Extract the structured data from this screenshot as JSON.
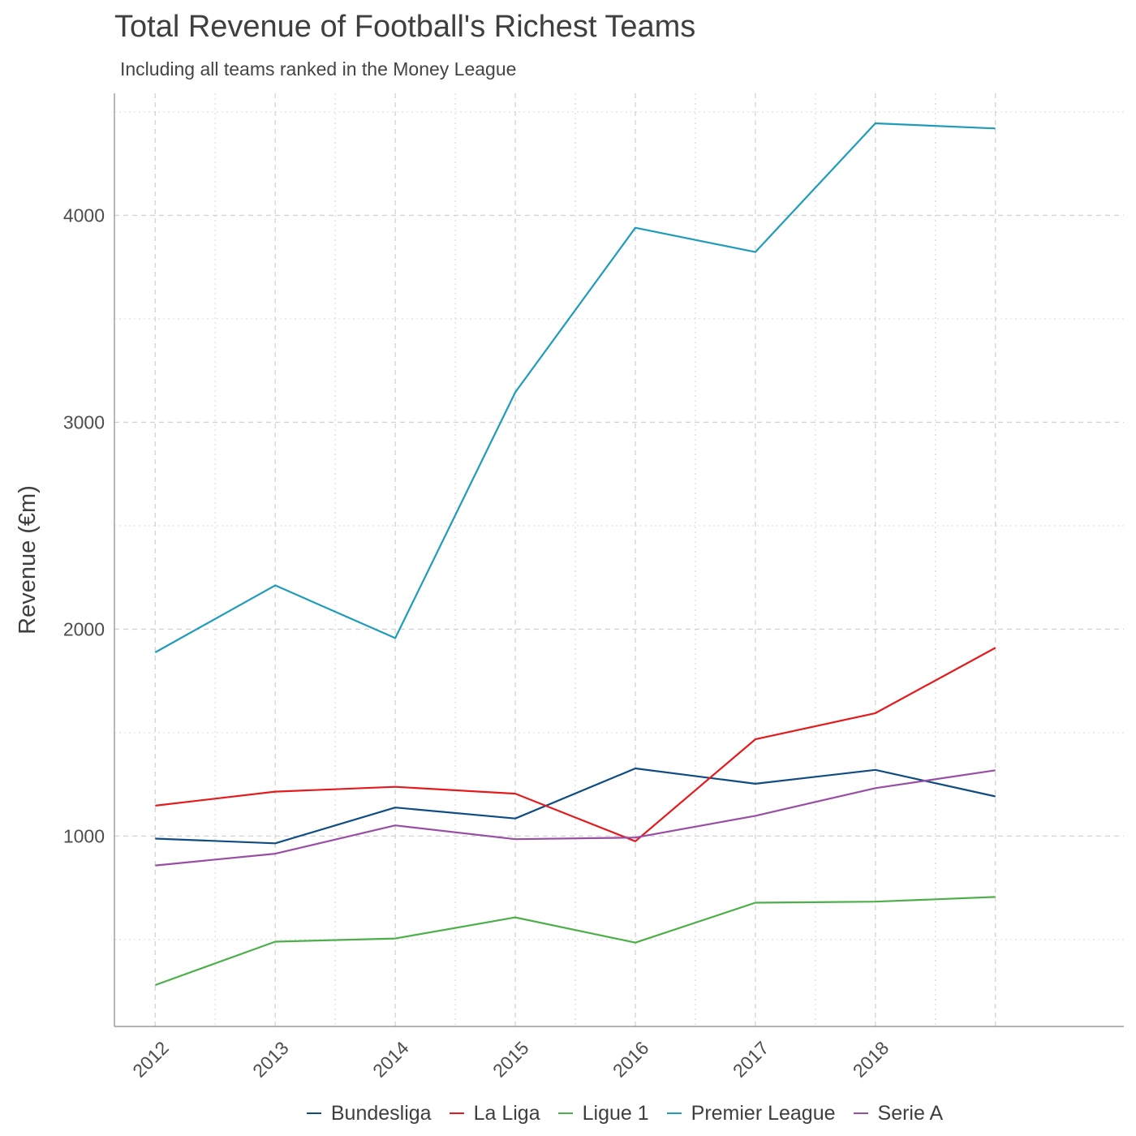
{
  "title": "Total Revenue of Football's Richest Teams",
  "subtitle": "Including all teams ranked in the Money League",
  "chart_data": {
    "type": "line",
    "title": "Total Revenue of Football's Richest Teams",
    "subtitle": "Including all teams ranked in the Money League",
    "xlabel": "",
    "ylabel": "Revenue (€m)",
    "x": [
      2012,
      2013,
      2014,
      2015,
      2016,
      2017,
      2018,
      2019
    ],
    "x_tick_labels": [
      "2012",
      "2013",
      "2014",
      "2015",
      "2016",
      "2017",
      "2018"
    ],
    "y_ticks": [
      1000,
      2000,
      3000,
      4000
    ],
    "y_tick_labels": [
      "1000",
      "2000",
      "3000",
      "4000"
    ],
    "xlim": [
      2011.66,
      2020.07
    ],
    "ylim": [
      80,
      4590
    ],
    "grid": true,
    "legend_position": "bottom",
    "series": [
      {
        "name": "Bundesliga",
        "color": "#0f4c81",
        "values": [
          988,
          965,
          1138,
          1085,
          1327,
          1253,
          1320,
          1192
        ]
      },
      {
        "name": "La Liga",
        "color": "#e41a1c",
        "values": [
          1147,
          1215,
          1238,
          1205,
          975,
          1468,
          1594,
          1910
        ]
      },
      {
        "name": "Ligue 1",
        "color": "#4daf4a",
        "values": [
          280,
          490,
          505,
          607,
          485,
          678,
          683,
          706
        ]
      },
      {
        "name": "Premier League",
        "color": "#1f9cba",
        "values": [
          1888,
          2212,
          1957,
          3145,
          3940,
          3823,
          4445,
          4420
        ]
      },
      {
        "name": "Serie A",
        "color": "#984ea3",
        "values": [
          858,
          915,
          1052,
          985,
          993,
          1098,
          1232,
          1318
        ]
      }
    ]
  }
}
